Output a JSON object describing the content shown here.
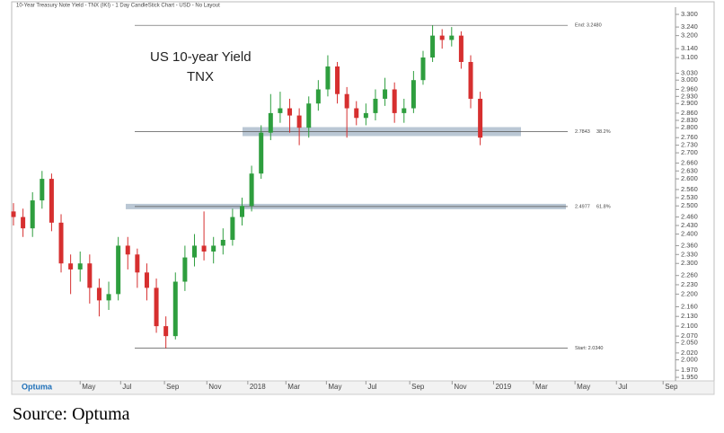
{
  "chart_data": {
    "type": "candlestick",
    "header": "10-Year Treasury Note Yield - TNX (IKI) - 1 Day CandleStick Chart - USD - No Layout",
    "title": "US 10-year Yield",
    "subtitle": "TNX",
    "logo": "Optuma",
    "source": "Source: Optuma",
    "up_color": "#2e9e3e",
    "down_color": "#d62f2f",
    "log_y": true,
    "x": [
      0,
      2,
      4,
      6,
      8,
      10,
      12,
      14,
      16,
      18,
      20,
      22,
      24,
      26,
      28,
      30,
      32,
      34,
      36,
      38,
      40,
      42,
      44,
      46,
      48,
      50,
      52,
      54,
      56,
      58,
      60,
      62,
      64,
      66,
      68,
      70,
      72,
      74,
      76,
      78,
      80,
      82,
      84,
      86,
      88,
      90,
      92,
      94,
      96,
      98
    ],
    "open": [
      2.48,
      2.46,
      2.42,
      2.52,
      2.6,
      2.44,
      2.3,
      2.28,
      2.3,
      2.22,
      2.18,
      2.2,
      2.36,
      2.33,
      2.27,
      2.22,
      2.1,
      2.07,
      2.24,
      2.32,
      2.36,
      2.34,
      2.36,
      2.38,
      2.46,
      2.5,
      2.62,
      2.78,
      2.86,
      2.88,
      2.85,
      2.8,
      2.9,
      2.96,
      3.06,
      2.94,
      2.88,
      2.84,
      2.86,
      2.92,
      2.96,
      2.86,
      2.88,
      3.0,
      3.1,
      3.2,
      3.18,
      3.2,
      3.08,
      2.92
    ],
    "high": [
      2.51,
      2.49,
      2.55,
      2.63,
      2.62,
      2.47,
      2.33,
      2.34,
      2.33,
      2.25,
      2.24,
      2.39,
      2.39,
      2.35,
      2.3,
      2.25,
      2.13,
      2.27,
      2.36,
      2.4,
      2.48,
      2.39,
      2.42,
      2.49,
      2.53,
      2.65,
      2.81,
      2.94,
      2.95,
      2.92,
      2.88,
      2.93,
      3.0,
      3.11,
      3.08,
      2.97,
      2.91,
      2.9,
      2.96,
      3.01,
      2.99,
      2.92,
      3.04,
      3.13,
      3.248,
      3.23,
      3.24,
      3.22,
      3.11,
      2.95
    ],
    "low": [
      2.43,
      2.39,
      2.39,
      2.49,
      2.41,
      2.27,
      2.2,
      2.24,
      2.17,
      2.13,
      2.15,
      2.18,
      2.28,
      2.22,
      2.18,
      2.08,
      2.034,
      2.06,
      2.21,
      2.29,
      2.31,
      2.3,
      2.33,
      2.36,
      2.43,
      2.48,
      2.6,
      2.75,
      2.82,
      2.78,
      2.73,
      2.76,
      2.87,
      2.93,
      2.9,
      2.76,
      2.81,
      2.81,
      2.83,
      2.89,
      2.82,
      2.82,
      2.86,
      2.98,
      3.08,
      3.14,
      3.15,
      3.05,
      2.88,
      2.73
    ],
    "close": [
      2.46,
      2.42,
      2.52,
      2.6,
      2.44,
      2.3,
      2.28,
      2.3,
      2.22,
      2.18,
      2.2,
      2.36,
      2.33,
      2.27,
      2.22,
      2.1,
      2.07,
      2.24,
      2.32,
      2.36,
      2.34,
      2.36,
      2.38,
      2.46,
      2.5,
      2.62,
      2.78,
      2.86,
      2.88,
      2.85,
      2.8,
      2.9,
      2.96,
      3.06,
      2.94,
      2.88,
      2.84,
      2.86,
      2.92,
      2.96,
      2.86,
      2.88,
      3.0,
      3.1,
      3.2,
      3.18,
      3.2,
      3.08,
      2.92,
      2.76
    ],
    "xlim": [
      0,
      139
    ],
    "xticks": [
      {
        "value": 14,
        "label": "May"
      },
      {
        "value": 22.5,
        "label": "Jul"
      },
      {
        "value": 31.7,
        "label": "Sep"
      },
      {
        "value": 40.6,
        "label": "Nov"
      },
      {
        "value": 49.2,
        "label": "2018"
      },
      {
        "value": 57.2,
        "label": "Mar"
      },
      {
        "value": 65.7,
        "label": "May"
      },
      {
        "value": 74,
        "label": "Jul"
      },
      {
        "value": 83.2,
        "label": "Sep"
      },
      {
        "value": 92.1,
        "label": "Nov"
      },
      {
        "value": 100.8,
        "label": "2019"
      },
      {
        "value": 109.2,
        "label": "Mar"
      },
      {
        "value": 117.9,
        "label": "May"
      },
      {
        "value": 126.6,
        "label": "Jul"
      },
      {
        "value": 136.4,
        "label": "Sep"
      }
    ],
    "ylim": [
      1.95,
      3.3
    ],
    "yticks": [
      {
        "value": 3.3,
        "label": "3.300"
      },
      {
        "value": 3.24,
        "label": "3.240"
      },
      {
        "value": 3.2,
        "label": "3.200"
      },
      {
        "value": 3.14,
        "label": "3.140"
      },
      {
        "value": 3.1,
        "label": "3.100"
      },
      {
        "value": 3.03,
        "label": "3.030"
      },
      {
        "value": 3.0,
        "label": "3.000"
      },
      {
        "value": 2.96,
        "label": "2.960"
      },
      {
        "value": 2.93,
        "label": "2.930"
      },
      {
        "value": 2.9,
        "label": "2.900"
      },
      {
        "value": 2.86,
        "label": "2.860"
      },
      {
        "value": 2.83,
        "label": "2.830"
      },
      {
        "value": 2.8,
        "label": "2.800"
      },
      {
        "value": 2.76,
        "label": "2.760"
      },
      {
        "value": 2.73,
        "label": "2.730"
      },
      {
        "value": 2.7,
        "label": "2.700"
      },
      {
        "value": 2.66,
        "label": "2.660"
      },
      {
        "value": 2.63,
        "label": "2.630"
      },
      {
        "value": 2.6,
        "label": "2.600"
      },
      {
        "value": 2.56,
        "label": "2.560"
      },
      {
        "value": 2.53,
        "label": "2.530"
      },
      {
        "value": 2.5,
        "label": "2.500"
      },
      {
        "value": 2.46,
        "label": "2.460"
      },
      {
        "value": 2.43,
        "label": "2.430"
      },
      {
        "value": 2.4,
        "label": "2.400"
      },
      {
        "value": 2.36,
        "label": "2.360"
      },
      {
        "value": 2.33,
        "label": "2.330"
      },
      {
        "value": 2.3,
        "label": "2.300"
      },
      {
        "value": 2.26,
        "label": "2.260"
      },
      {
        "value": 2.23,
        "label": "2.230"
      },
      {
        "value": 2.2,
        "label": "2.200"
      },
      {
        "value": 2.16,
        "label": "2.160"
      },
      {
        "value": 2.13,
        "label": "2.130"
      },
      {
        "value": 2.1,
        "label": "2.100"
      },
      {
        "value": 2.07,
        "label": "2.070"
      },
      {
        "value": 2.05,
        "label": "2.050"
      },
      {
        "value": 2.02,
        "label": "2.020"
      },
      {
        "value": 2.0,
        "label": "2.000"
      },
      {
        "value": 1.97,
        "label": "1.970"
      },
      {
        "value": 1.95,
        "label": "1.950"
      }
    ],
    "levels": [
      {
        "value": 3.248,
        "label": "End: 3.2480"
      },
      {
        "value": 2.7843,
        "label": "2.7843",
        "ratio": "38.2%"
      },
      {
        "value": 2.4977,
        "label": "2.4977",
        "ratio": "61.8%"
      },
      {
        "value": 2.034,
        "label": "Start: 2.0340"
      }
    ]
  }
}
